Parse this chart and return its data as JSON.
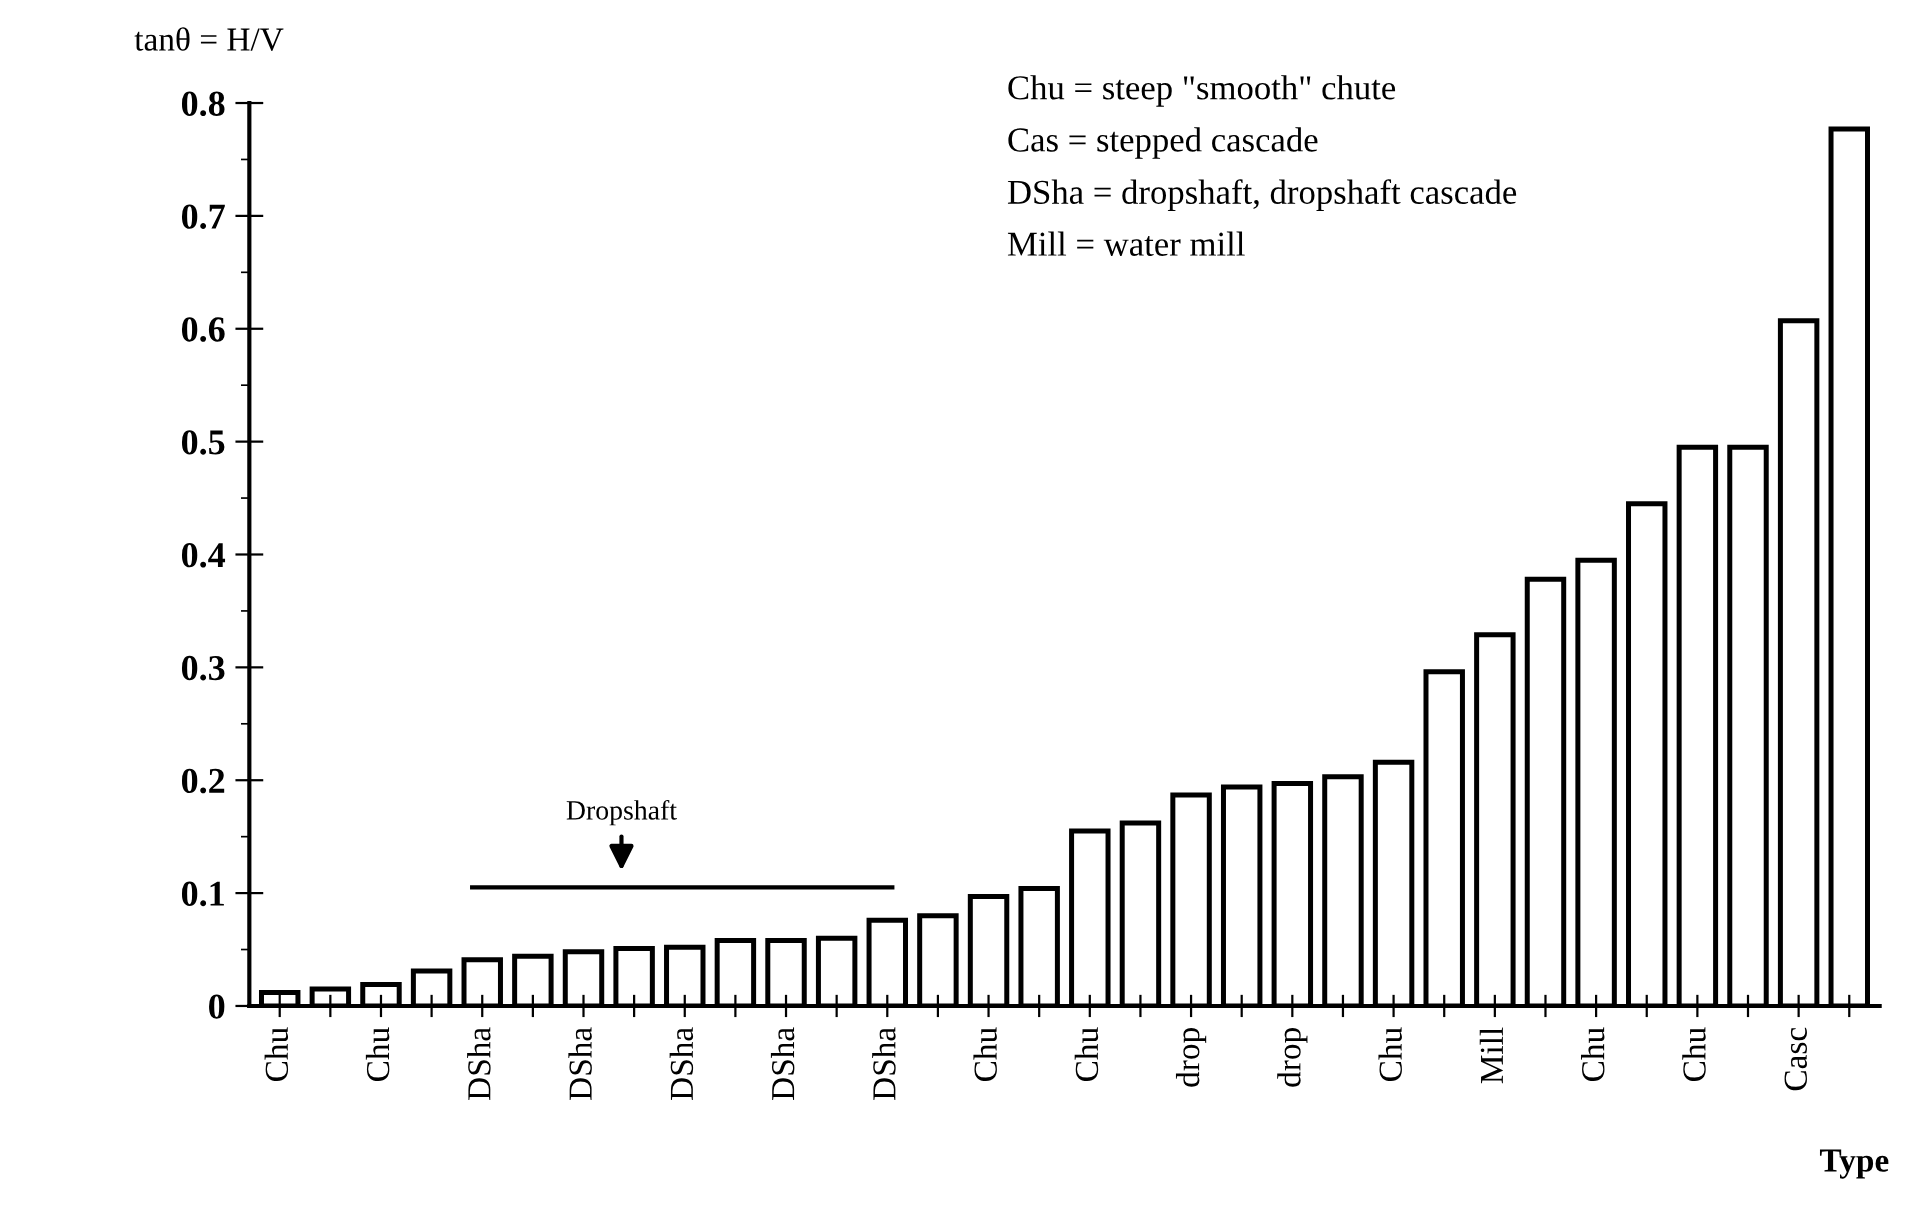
{
  "chart_data": {
    "type": "bar",
    "ylabel": "tanθ = H/V",
    "xlabel": "Type",
    "categories": [
      "Chu",
      null,
      "Chu",
      null,
      "DSha",
      null,
      "DSha",
      null,
      "DSha",
      null,
      "DSha",
      null,
      "DSha",
      null,
      "Chu",
      null,
      "Chu",
      null,
      "drop",
      null,
      "drop",
      null,
      "Chu",
      null,
      "Mill",
      null,
      "Chu",
      null,
      "Chu",
      null,
      "Casc",
      null
    ],
    "values": [
      0.012,
      0.015,
      0.019,
      0.031,
      0.041,
      0.044,
      0.048,
      0.051,
      0.052,
      0.058,
      0.058,
      0.06,
      0.076,
      0.08,
      0.097,
      0.104,
      0.155,
      0.162,
      0.187,
      0.194,
      0.197,
      0.203,
      0.216,
      0.296,
      0.329,
      0.378,
      0.395,
      0.445,
      0.495,
      0.495,
      0.607,
      0.777
    ],
    "color": "#ffffff",
    "ylim": [
      0,
      0.8
    ],
    "yticks": [
      {
        "value": 0,
        "label": "0"
      },
      0.1,
      0.2,
      0.3,
      0.4,
      0.5,
      0.6,
      0.7,
      0.8
    ],
    "grid": false,
    "legend": false,
    "annotations": [
      "Chu = steep \"smooth\" chute",
      "Cas = stepped cascade",
      "DSha = dropshaft, dropshaft cascade",
      "Mill = water mill",
      "Dropshaft"
    ]
  }
}
